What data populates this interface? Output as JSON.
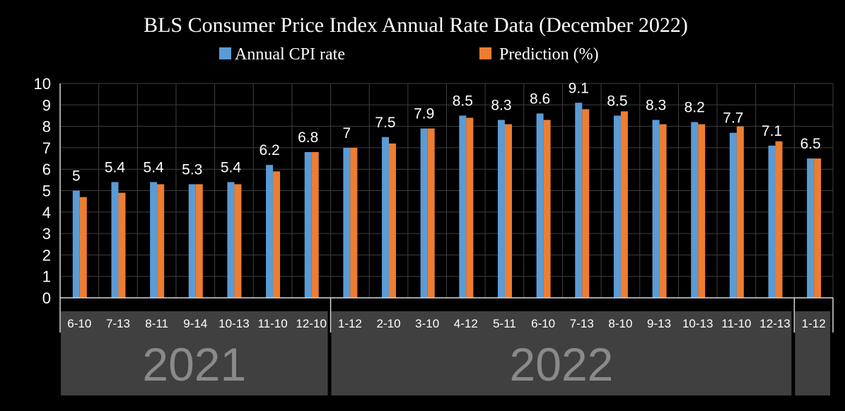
{
  "chart_data": {
    "type": "bar",
    "title": "BLS Consumer Price Index Annual Rate Data (December 2022)",
    "categories": [
      "6-10",
      "7-13",
      "8-11",
      "9-14",
      "10-13",
      "11-10",
      "12-10",
      "1-12",
      "2-10",
      "3-10",
      "4-12",
      "5-11",
      "6-10",
      "7-13",
      "8-10",
      "9-13",
      "10-13",
      "11-10",
      "12-13",
      "1-12"
    ],
    "series": [
      {
        "name": "Annual CPI rate",
        "color": "#5b9bd5",
        "values": [
          5,
          5.4,
          5.4,
          5.3,
          5.4,
          6.2,
          6.8,
          7,
          7.5,
          7.9,
          8.5,
          8.3,
          8.6,
          9.1,
          8.5,
          8.3,
          8.2,
          7.7,
          7.1,
          6.5
        ],
        "data_labels": [
          "5",
          "5.4",
          "5.4",
          "5.3",
          "5.4",
          "6.2",
          "6.8",
          "7",
          "7.5",
          "7.9",
          "8.5",
          "8.3",
          "8.6",
          "9.1",
          "8.5",
          "8.3",
          "8.2",
          "7.7",
          "7.1",
          "6.5"
        ]
      },
      {
        "name": "Prediction (%)",
        "color": "#ed7d31",
        "values": [
          4.7,
          4.9,
          5.3,
          5.3,
          5.3,
          5.9,
          6.8,
          7.0,
          7.2,
          7.9,
          8.4,
          8.1,
          8.3,
          8.8,
          8.7,
          8.1,
          8.1,
          8.0,
          7.3,
          6.5
        ]
      }
    ],
    "ylim": [
      0,
      10
    ],
    "yticks": [
      "0",
      "1",
      "2",
      "3",
      "4",
      "5",
      "6",
      "7",
      "8",
      "9",
      "10"
    ],
    "groups": [
      {
        "label": "2021",
        "start": 0,
        "end": 6
      },
      {
        "label": "2022",
        "start": 7,
        "end": 18
      },
      {
        "label": "",
        "start": 19,
        "end": 19
      }
    ],
    "grid": true,
    "legend": "top-center"
  },
  "colors": {
    "background": "#000000",
    "grid": "#3f3f3f",
    "axis": "#d9d9d9",
    "group_box": "#404040",
    "year_text": "#8a8a8a"
  }
}
